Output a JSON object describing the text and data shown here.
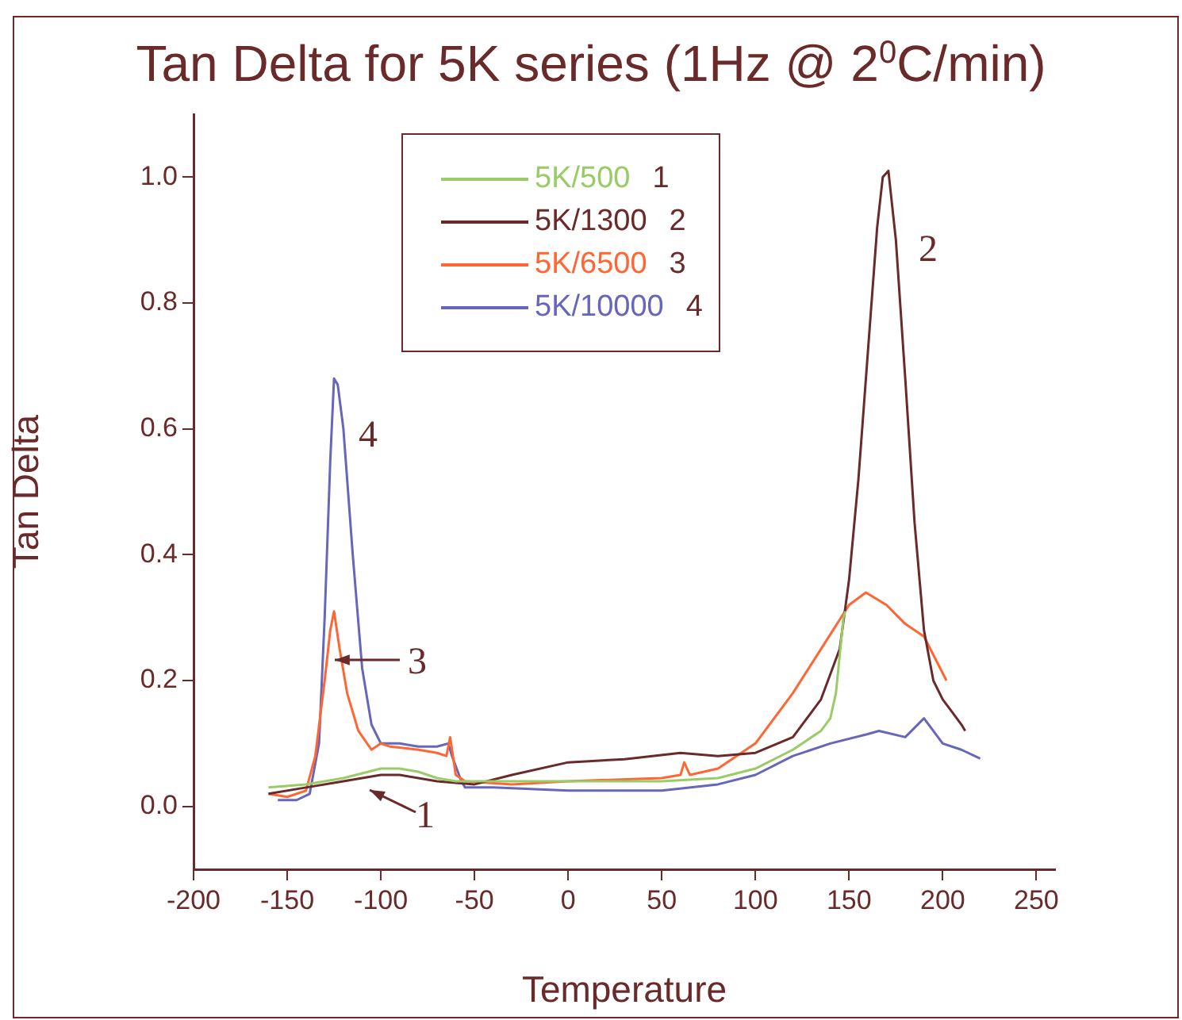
{
  "chart_data": {
    "type": "line",
    "title": "Tan Delta for 5K series (1Hz @ 2$^{0}$C/min)",
    "xlabel": "Temperature",
    "ylabel": "Tan Delta",
    "xlim": [
      -200,
      260
    ],
    "xticks": [
      -200,
      -150,
      -100,
      -50,
      0,
      50,
      100,
      150,
      200,
      250
    ],
    "ylim": [
      -0.1,
      1.1
    ],
    "yticks": [
      {
        "value": 0,
        "label": "0.0"
      },
      {
        "value": 0.2,
        "label": "0.2"
      },
      {
        "value": 0.4,
        "label": "0.4"
      },
      {
        "value": 0.6,
        "label": "0.6"
      },
      {
        "value": 0.8,
        "label": "0.8"
      },
      {
        "value": 1,
        "label": "1.0"
      }
    ],
    "grid": false,
    "legend": "top",
    "marker": "none",
    "line_style": "solid",
    "annotations": [
      "4",
      "3",
      "1",
      "2"
    ],
    "series": [
      {
        "name": "5K/500 1",
        "color": "#99cc66",
        "x": [
          -160,
          -140,
          -120,
          -100,
          -90,
          -80,
          -70,
          -60,
          -40,
          0,
          50,
          80,
          100,
          120,
          135,
          140,
          143,
          147,
          148
        ],
        "values": [
          0.03,
          0.035,
          0.045,
          0.06,
          0.06,
          0.055,
          0.045,
          0.04,
          0.04,
          0.04,
          0.04,
          0.045,
          0.06,
          0.09,
          0.12,
          0.14,
          0.18,
          0.3,
          0.31
        ]
      },
      {
        "name": "5K/1300 2",
        "color": "#6b2a2a",
        "x": [
          -160,
          -140,
          -120,
          -100,
          -90,
          -70,
          -50,
          -30,
          0,
          30,
          60,
          80,
          100,
          120,
          135,
          145,
          150,
          155,
          160,
          165,
          168,
          171,
          175,
          180,
          185,
          190,
          195,
          200,
          205,
          210,
          212
        ],
        "values": [
          0.02,
          0.03,
          0.04,
          0.05,
          0.05,
          0.04,
          0.035,
          0.05,
          0.07,
          0.075,
          0.085,
          0.08,
          0.085,
          0.11,
          0.17,
          0.25,
          0.36,
          0.52,
          0.72,
          0.92,
          1.0,
          1.01,
          0.9,
          0.68,
          0.45,
          0.28,
          0.2,
          0.17,
          0.15,
          0.13,
          0.12
        ]
      },
      {
        "name": "5K/6500 3",
        "color": "#ff6633",
        "x": [
          -160,
          -150,
          -140,
          -135,
          -130,
          -127,
          -125,
          -122,
          -118,
          -112,
          -105,
          -100,
          -95,
          -80,
          -70,
          -65,
          -63,
          -60,
          -55,
          -30,
          0,
          50,
          60,
          62,
          65,
          80,
          100,
          120,
          135,
          150,
          159,
          170,
          180,
          190,
          202
        ],
        "values": [
          0.02,
          0.015,
          0.025,
          0.08,
          0.2,
          0.28,
          0.31,
          0.25,
          0.18,
          0.12,
          0.09,
          0.1,
          0.095,
          0.09,
          0.085,
          0.08,
          0.11,
          0.05,
          0.04,
          0.035,
          0.04,
          0.045,
          0.05,
          0.07,
          0.05,
          0.06,
          0.1,
          0.18,
          0.25,
          0.32,
          0.34,
          0.32,
          0.29,
          0.27,
          0.2
        ]
      },
      {
        "name": "5K/10000 4",
        "color": "#6666bb",
        "x": [
          -155,
          -145,
          -138,
          -133,
          -130,
          -127,
          -125,
          -123,
          -120,
          -115,
          -110,
          -105,
          -100,
          -90,
          -80,
          -70,
          -64,
          -62,
          -57,
          -55,
          -40,
          0,
          50,
          80,
          100,
          120,
          140,
          160,
          166,
          180,
          190,
          200,
          210,
          220
        ],
        "values": [
          0.01,
          0.01,
          0.02,
          0.1,
          0.3,
          0.55,
          0.68,
          0.67,
          0.6,
          0.4,
          0.22,
          0.13,
          0.1,
          0.1,
          0.095,
          0.095,
          0.1,
          0.08,
          0.04,
          0.03,
          0.03,
          0.025,
          0.025,
          0.035,
          0.05,
          0.08,
          0.1,
          0.115,
          0.12,
          0.11,
          0.14,
          0.1,
          0.09,
          0.076
        ]
      }
    ]
  }
}
